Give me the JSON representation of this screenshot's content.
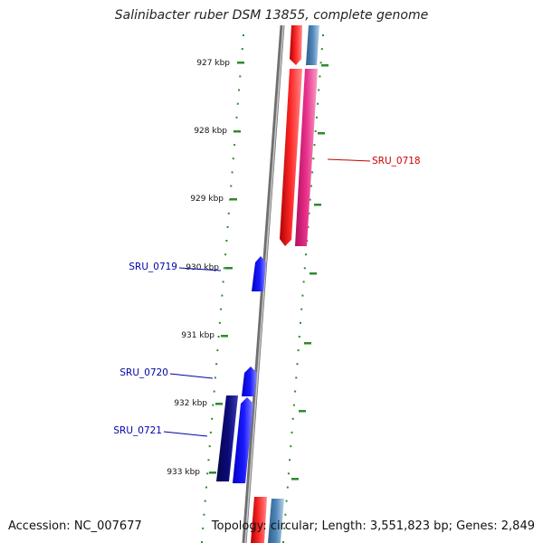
{
  "title": "Salinibacter ruber DSM 13855, complete genome",
  "footer": {
    "accession": "Accession: NC_007677",
    "summary": "Topology: circular; Length: 3,551,823 bp; Genes: 2,849"
  },
  "ticks": [
    "927 kbp",
    "928 kbp",
    "929 kbp",
    "930 kbp",
    "931 kbp",
    "932 kbp",
    "933 kbp"
  ],
  "gene_labels": [
    "SRU_0718",
    "SRU_0719",
    "SRU_0720",
    "SRU_0721"
  ],
  "colors": {
    "backbone": "#8a8a8a",
    "tick_dots": "#2e8b2e",
    "forward_red": "#ff1a1a",
    "forward_pink": "#e8308a",
    "steel_blue": "#4f86b8",
    "reverse_blue": "#1a1aff",
    "navy": "#0b0b7a",
    "label_red": "#cc0000",
    "label_blue": "#0000aa"
  }
}
